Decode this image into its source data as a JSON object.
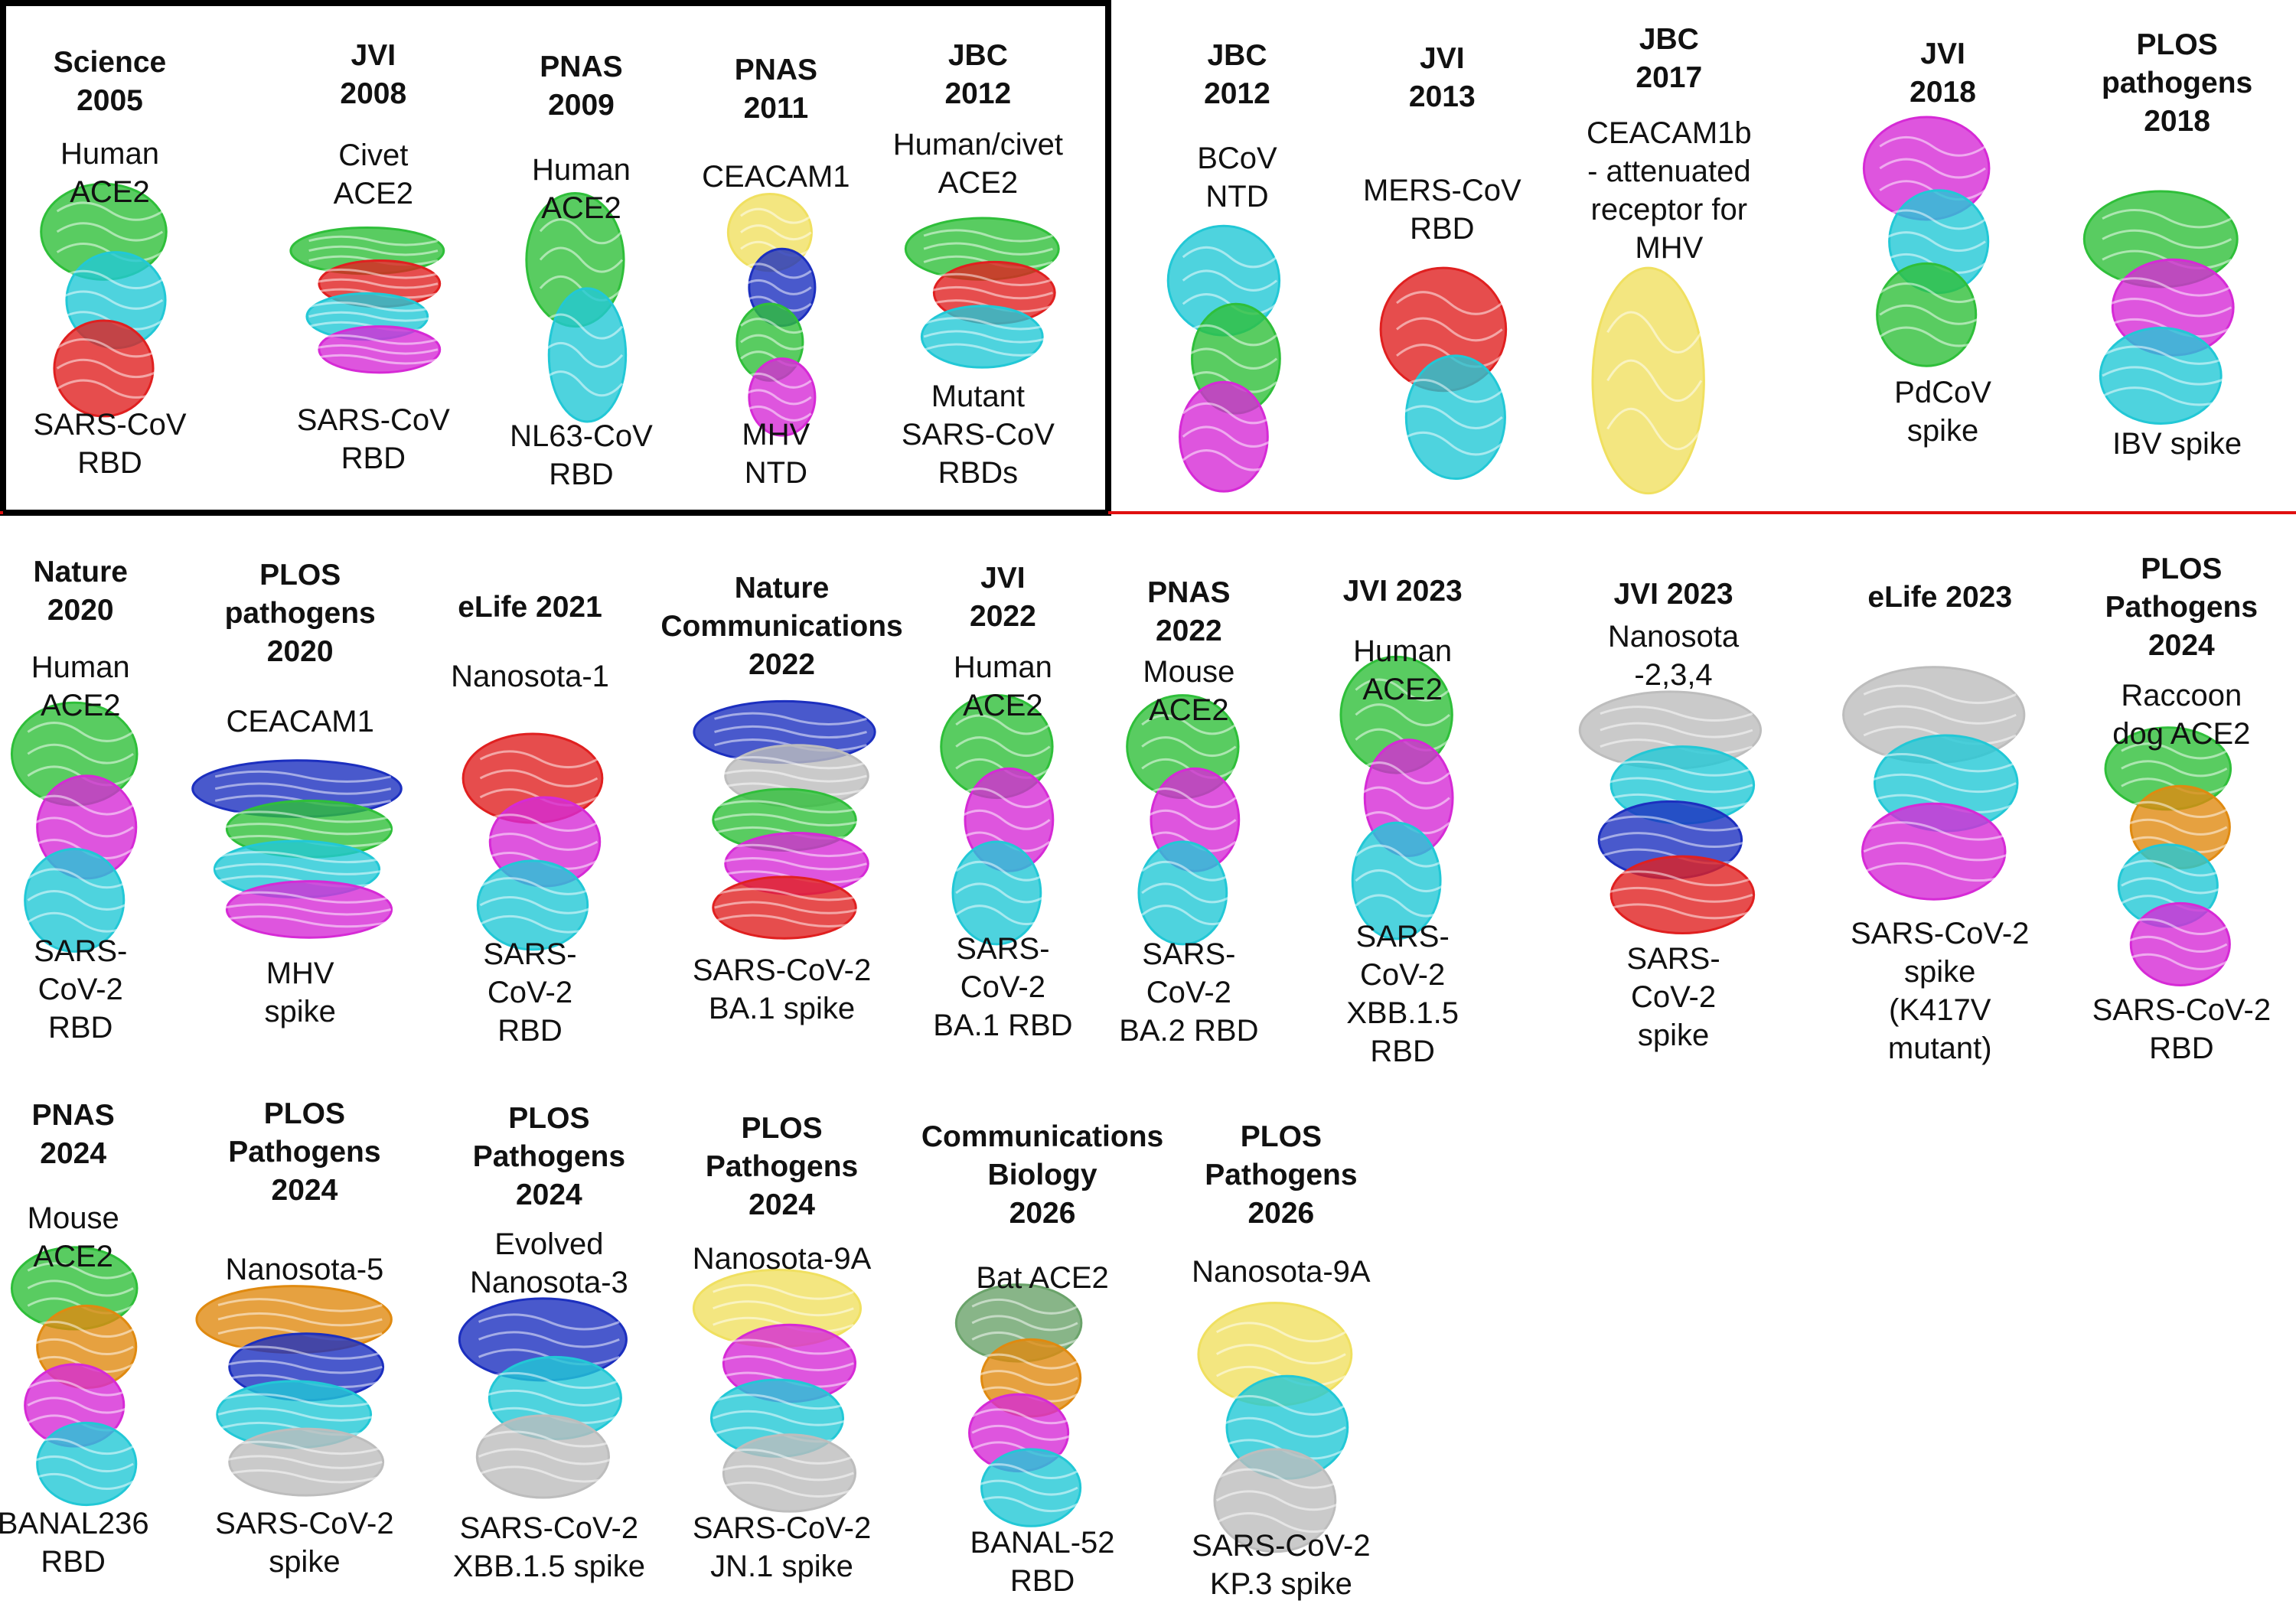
{
  "panels": [
    {
      "journal": "Science\n2005",
      "top": "Human\nACE2",
      "bottom": "SARS-CoV\nRBD"
    },
    {
      "journal": "JVI\n2008",
      "top": "Civet\nACE2",
      "bottom": "SARS-CoV\nRBD"
    },
    {
      "journal": "PNAS\n2009",
      "top": "Human\nACE2",
      "bottom": "NL63-CoV\nRBD"
    },
    {
      "journal": "PNAS\n2011",
      "top": "CEACAM1",
      "bottom": "MHV\nNTD"
    },
    {
      "journal": "JBC\n2012",
      "top": "Human/civet\nACE2",
      "bottom": "Mutant\nSARS-CoV\nRBDs"
    },
    {
      "journal": "JBC\n2012",
      "top": "BCoV\nNTD"
    },
    {
      "journal": "JVI\n2013",
      "top": "MERS-CoV\nRBD"
    },
    {
      "journal": "JBC\n2017",
      "top": "CEACAM1b\n- attenuated\nreceptor for\nMHV"
    },
    {
      "journal": "JVI\n2018",
      "bottom": "PdCoV\nspike"
    },
    {
      "journal": "PLOS\npathogens\n2018",
      "bottom": "IBV spike"
    },
    {
      "journal": "Nature\n2020",
      "top": "Human\nACE2",
      "bottom": "SARS-\nCoV-2\nRBD"
    },
    {
      "journal": "PLOS\npathogens\n2020",
      "top": "CEACAM1",
      "bottom": "MHV\nspike"
    },
    {
      "journal": "eLife 2021",
      "top": "Nanosota-1",
      "bottom": "SARS-\nCoV-2\nRBD"
    },
    {
      "journal": "Nature\nCommunications\n2022",
      "bottom": "SARS-CoV-2\nBA.1 spike"
    },
    {
      "journal": "JVI\n2022",
      "top": "Human\nACE2",
      "bottom": "SARS-\nCoV-2\nBA.1 RBD"
    },
    {
      "journal": "PNAS\n2022",
      "top": "Mouse\nACE2",
      "bottom": "SARS-\nCoV-2\nBA.2 RBD"
    },
    {
      "journal": "JVI 2023",
      "top": "Human\nACE2",
      "bottom": "SARS-\nCoV-2\nXBB.1.5\nRBD"
    },
    {
      "journal": "JVI 2023",
      "top": "Nanosota\n-2,3,4",
      "bottom": "SARS-\nCoV-2\nspike"
    },
    {
      "journal": "eLife 2023",
      "bottom": "SARS-CoV-2\nspike\n(K417V\nmutant)"
    },
    {
      "journal": "PLOS\nPathogens\n2024",
      "top": "Raccoon\ndog ACE2",
      "bottom": "SARS-CoV-2\nRBD"
    },
    {
      "journal": "PNAS\n2024",
      "top": "Mouse\nACE2",
      "bottom": "BANAL236\nRBD"
    },
    {
      "journal": "PLOS\nPathogens\n2024",
      "top": "Nanosota-5",
      "bottom": "SARS-CoV-2\nspike"
    },
    {
      "journal": "PLOS\nPathogens\n2024",
      "top": "Evolved\nNanosota-3",
      "bottom": "SARS-CoV-2\nXBB.1.5 spike"
    },
    {
      "journal": "PLOS\nPathogens\n2024",
      "top": "Nanosota-9A",
      "bottom": "SARS-CoV-2\nJN.1 spike"
    },
    {
      "journal": "Communications\nBiology\n2026",
      "top": "Bat ACE2",
      "bottom": "BANAL-52\nRBD"
    },
    {
      "journal": "PLOS\nPathogens\n2026",
      "top": "Nanosota-9A",
      "bottom": "SARS-CoV-2\nKP.3 spike"
    }
  ]
}
